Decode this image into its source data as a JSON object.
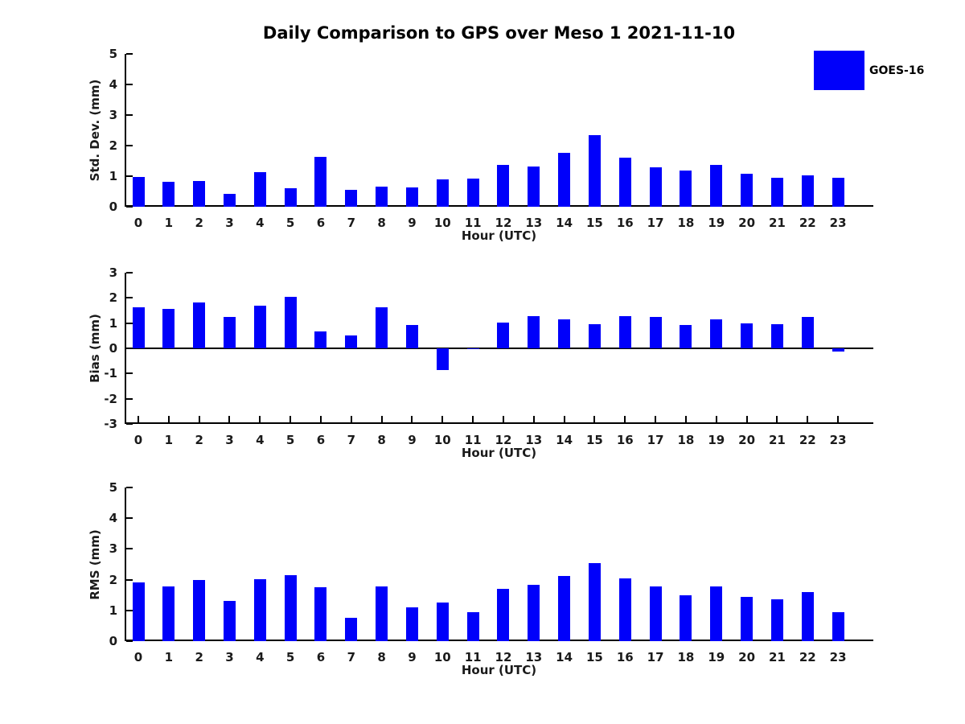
{
  "title": "Daily Comparison to GPS over Meso 1 2021-11-10",
  "legend": {
    "label": "GOES-16",
    "swatch_color": "#0000fa"
  },
  "colors": {
    "bar": "#0000fa",
    "axis_line": "#000000",
    "tick_text": "#1a1a1a",
    "title_text": "#000000"
  },
  "chart_data": [
    {
      "type": "bar",
      "ylabel": "Std. Dev. (mm)",
      "xlabel": "Hour (UTC)",
      "ylim": [
        0,
        5
      ],
      "yticks": [
        0,
        1,
        2,
        3,
        4,
        5
      ],
      "grid": false,
      "legend_position": "top-right-outside",
      "categories": [
        "0",
        "1",
        "2",
        "3",
        "4",
        "5",
        "6",
        "7",
        "8",
        "9",
        "10",
        "11",
        "12",
        "13",
        "14",
        "15",
        "16",
        "17",
        "18",
        "19",
        "20",
        "21",
        "22",
        "23"
      ],
      "series": [
        {
          "name": "GOES-16",
          "color": "#0000fa",
          "values": [
            0.97,
            0.82,
            0.85,
            0.43,
            1.13,
            0.61,
            1.62,
            0.56,
            0.66,
            0.63,
            0.9,
            0.92,
            1.36,
            1.31,
            1.77,
            2.35,
            1.6,
            1.28,
            1.18,
            1.36,
            1.07,
            0.94,
            1.02,
            0.94
          ]
        }
      ]
    },
    {
      "type": "bar",
      "ylabel": "Bias (mm)",
      "xlabel": "Hour (UTC)",
      "ylim": [
        -3,
        3
      ],
      "yticks": [
        -3,
        -2,
        -1,
        0,
        1,
        2,
        3
      ],
      "grid": false,
      "zero_line": true,
      "categories": [
        "0",
        "1",
        "2",
        "3",
        "4",
        "5",
        "6",
        "7",
        "8",
        "9",
        "10",
        "11",
        "12",
        "13",
        "14",
        "15",
        "16",
        "17",
        "18",
        "19",
        "20",
        "21",
        "22",
        "23"
      ],
      "series": [
        {
          "name": "GOES-16",
          "color": "#0000fa",
          "values": [
            1.62,
            1.56,
            1.81,
            1.25,
            1.68,
            2.05,
            0.66,
            0.51,
            1.64,
            0.94,
            -0.87,
            -0.02,
            1.03,
            1.28,
            1.14,
            0.97,
            1.28,
            1.25,
            0.94,
            1.14,
            1.0,
            0.97,
            1.26,
            -0.13
          ]
        }
      ]
    },
    {
      "type": "bar",
      "ylabel": "RMS (mm)",
      "xlabel": "Hour (UTC)",
      "ylim": [
        0,
        5
      ],
      "yticks": [
        0,
        1,
        2,
        3,
        4,
        5
      ],
      "grid": false,
      "categories": [
        "0",
        "1",
        "2",
        "3",
        "4",
        "5",
        "6",
        "7",
        "8",
        "9",
        "10",
        "11",
        "12",
        "13",
        "14",
        "15",
        "16",
        "17",
        "18",
        "19",
        "20",
        "21",
        "22",
        "23"
      ],
      "series": [
        {
          "name": "GOES-16",
          "color": "#0000fa",
          "values": [
            1.9,
            1.77,
            2.0,
            1.32,
            2.02,
            2.15,
            1.76,
            0.75,
            1.78,
            1.1,
            1.26,
            0.93,
            1.69,
            1.84,
            2.12,
            2.53,
            2.04,
            1.79,
            1.5,
            1.78,
            1.45,
            1.36,
            1.6,
            0.95
          ]
        }
      ]
    }
  ]
}
